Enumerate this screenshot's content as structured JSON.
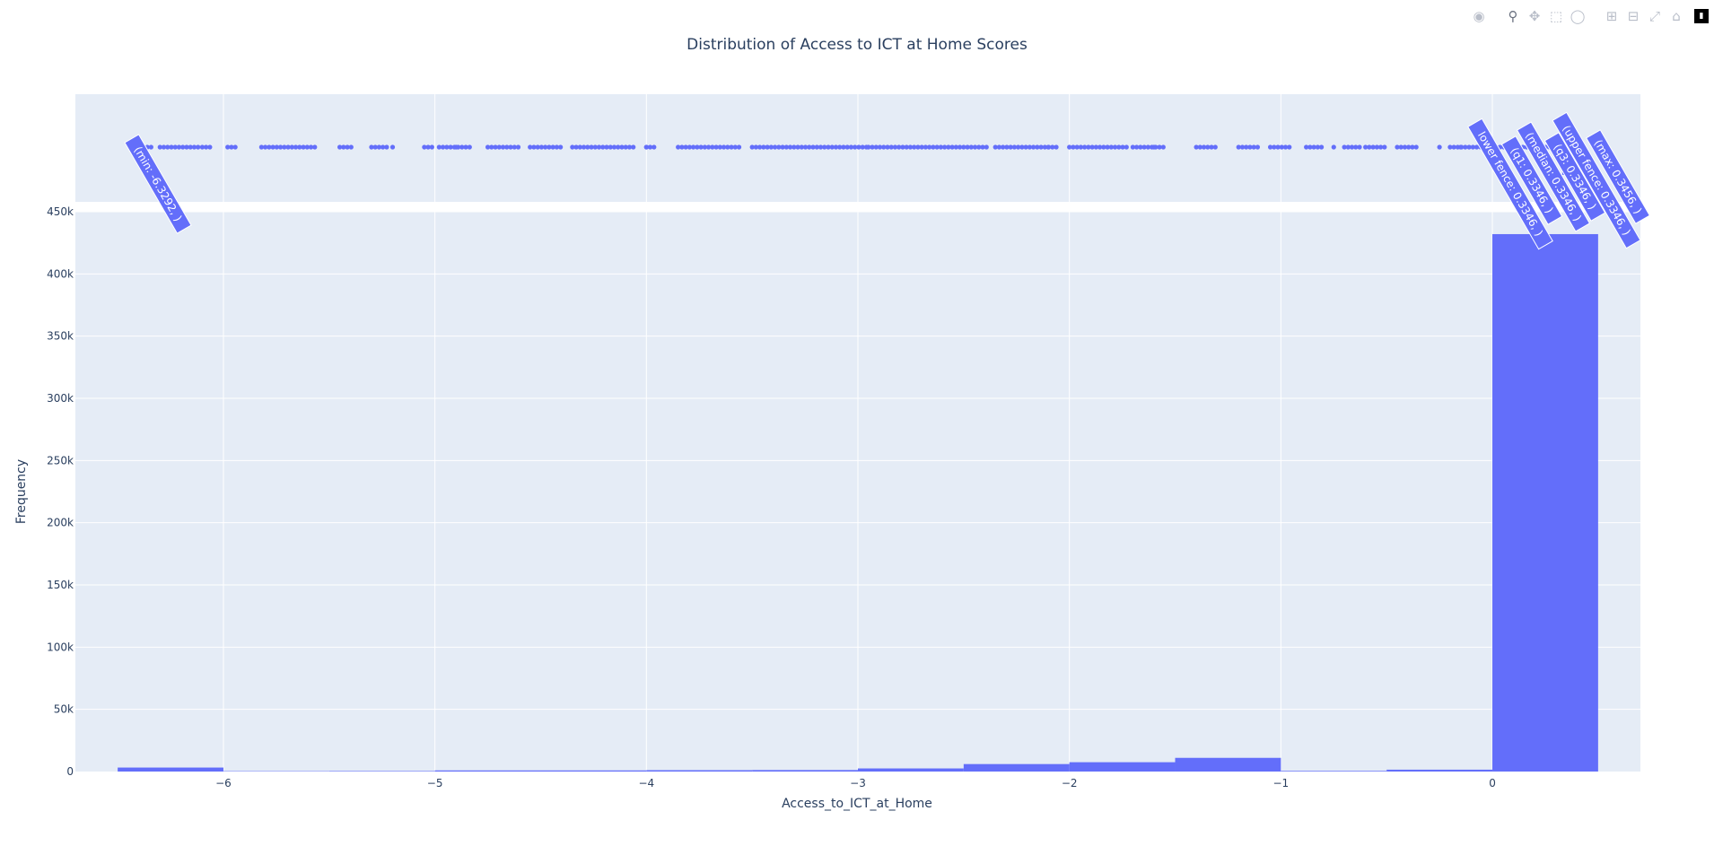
{
  "toolbar": {
    "icons": [
      "camera-icon",
      "zoom-icon",
      "pan-icon",
      "box-select-icon",
      "lasso-icon",
      "zoom-in-icon",
      "zoom-out-icon",
      "autoscale-icon",
      "reset-axes-icon",
      "plotly-logo"
    ]
  },
  "colors": {
    "bar": "#636efa",
    "plot_bg": "#e5ecf6",
    "grid": "#ffffff",
    "text": "#2a3f5f"
  },
  "chart_data": {
    "type": "bar",
    "title": "Distribution of Access to ICT at Home Scores",
    "xlabel": "Access_to_ICT_at_Home",
    "ylabel": "Frequency",
    "xlim": [
      -6.7,
      0.7
    ],
    "ylim": [
      0,
      450000
    ],
    "grid": true,
    "x_ticks": [
      -6,
      -5,
      -4,
      -3,
      -2,
      -1,
      0
    ],
    "x_tick_labels": [
      "−6",
      "−5",
      "−4",
      "−3",
      "−2",
      "−1",
      "0"
    ],
    "y_ticks": [
      0,
      50000,
      100000,
      150000,
      200000,
      250000,
      300000,
      350000,
      400000,
      450000
    ],
    "y_tick_labels": [
      "0",
      "50k",
      "100k",
      "150k",
      "200k",
      "250k",
      "300k",
      "350k",
      "400k",
      "450k"
    ],
    "bins": [
      {
        "x0": -6.5,
        "x1": -6.0,
        "count": 3200
      },
      {
        "x0": -6.0,
        "x1": -5.5,
        "count": 300
      },
      {
        "x0": -5.5,
        "x1": -5.0,
        "count": 400
      },
      {
        "x0": -5.0,
        "x1": -4.5,
        "count": 900
      },
      {
        "x0": -4.5,
        "x1": -4.0,
        "count": 900
      },
      {
        "x0": -4.0,
        "x1": -3.5,
        "count": 1100
      },
      {
        "x0": -3.5,
        "x1": -3.0,
        "count": 1200
      },
      {
        "x0": -3.0,
        "x1": -2.5,
        "count": 2500
      },
      {
        "x0": -2.5,
        "x1": -2.0,
        "count": 6000
      },
      {
        "x0": -2.0,
        "x1": -1.5,
        "count": 7500
      },
      {
        "x0": -1.5,
        "x1": -1.0,
        "count": 11000
      },
      {
        "x0": -1.0,
        "x1": -0.5,
        "count": 500
      },
      {
        "x0": -0.5,
        "x1": 0.0,
        "count": 1500
      },
      {
        "x0": 0.0,
        "x1": 0.5,
        "count": 432000
      }
    ],
    "marginal_box": {
      "type": "box",
      "min": -6.3292,
      "lower_fence": 0.3346,
      "q1": 0.3346,
      "median": 0.3346,
      "q3": 0.3346,
      "upper_fence": 0.3346,
      "max": 0.3456,
      "hover_labels": [
        {
          "key": "min",
          "text": "(min: -6.3292, )"
        },
        {
          "key": "lower_fence",
          "text": "lower fence: 0.3346, )"
        },
        {
          "key": "q1",
          "text": "(q1: 0.3346, )"
        },
        {
          "key": "median",
          "text": "(median: 0.3346, )"
        },
        {
          "key": "q3",
          "text": "(q3: 0.3346, )"
        },
        {
          "key": "upper_fence",
          "text": "(upper fence: 0.3346, )"
        },
        {
          "key": "max",
          "text": "(max: 0.3456, )"
        }
      ],
      "outlier_ranges": [
        [
          -6.36,
          -6.34
        ],
        [
          -6.3,
          -6.12
        ],
        [
          -6.1,
          -6.05
        ],
        [
          -5.98,
          -5.93
        ],
        [
          -5.82,
          -5.56
        ],
        [
          -5.45,
          -5.38
        ],
        [
          -5.3,
          -5.22
        ],
        [
          -5.05,
          -5.0
        ],
        [
          -4.98,
          -4.82
        ],
        [
          -4.75,
          -4.6
        ],
        [
          -4.55,
          -4.4
        ],
        [
          -4.35,
          -4.05
        ],
        [
          -4.0,
          -3.95
        ],
        [
          -3.85,
          -3.55
        ],
        [
          -3.5,
          -2.95
        ],
        [
          -2.95,
          -2.38
        ],
        [
          -2.35,
          -2.05
        ],
        [
          -2.0,
          -1.72
        ],
        [
          -1.7,
          -1.55
        ],
        [
          -1.4,
          -1.3
        ],
        [
          -1.2,
          -1.1
        ],
        [
          -1.05,
          -0.95
        ],
        [
          -0.88,
          -0.8
        ],
        [
          -0.7,
          -0.62
        ],
        [
          -0.6,
          -0.5
        ],
        [
          -0.45,
          -0.35
        ],
        [
          -0.2,
          -0.05
        ],
        [
          0.0,
          0.28
        ]
      ],
      "outlier_singles": [
        -5.2,
        -4.9,
        -4.0,
        -2.1,
        -1.6,
        -0.75,
        -0.25,
        -0.15,
        0.3
      ]
    }
  }
}
